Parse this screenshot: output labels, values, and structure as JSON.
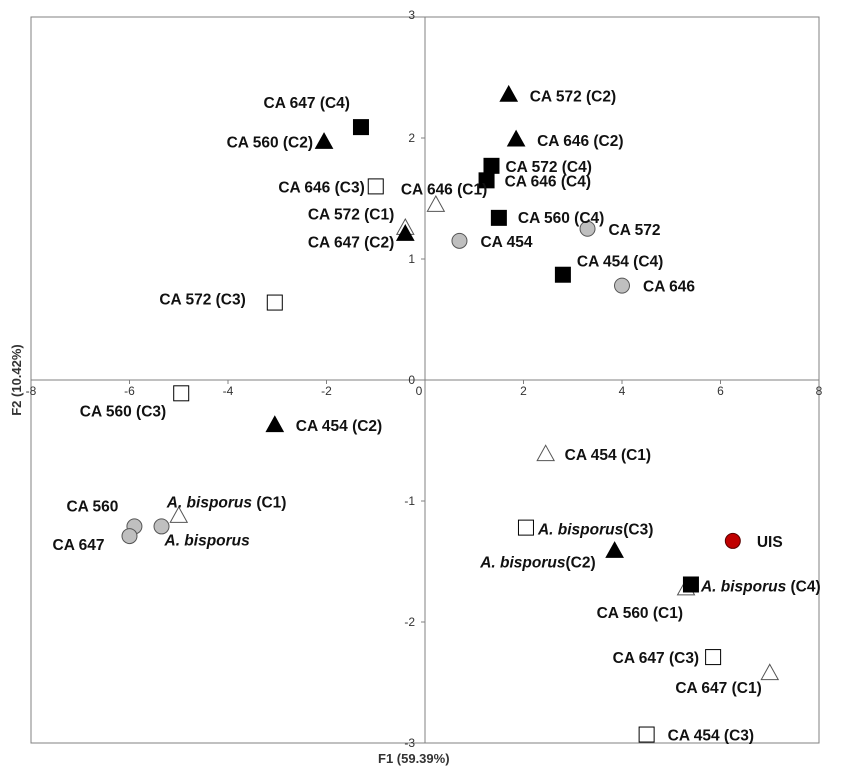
{
  "chart_data": {
    "type": "scatter",
    "title": "",
    "xlabel": "F1 (59.39%)",
    "ylabel": "F2 (10.42%)",
    "xlim": [
      -8,
      8
    ],
    "ylim": [
      -3,
      3
    ],
    "x_ticks": [
      "-8",
      "-6",
      "-4",
      "-2",
      "0",
      "2",
      "4",
      "6",
      "8"
    ],
    "y_ticks": [
      "-3",
      "-2",
      "-1",
      "0",
      "1",
      "2",
      "3"
    ],
    "grid": false,
    "legend": "none",
    "marker_colors": {
      "filled_square": "#000000",
      "open_square": "#ffffff",
      "filled_triangle": "#000000",
      "open_triangle": "#ffffff",
      "grey_circle": "#bfbfbf",
      "red_circle": "#c00000"
    },
    "points": [
      {
        "marker": "filled_square",
        "x": -1.3,
        "y": 2.09,
        "label": "CA 647 (C4)"
      },
      {
        "marker": "filled_triangle",
        "x": -2.05,
        "y": 1.97,
        "label": "CA 560 (C2)"
      },
      {
        "marker": "open_square",
        "x": -1.0,
        "y": 1.6,
        "label": "CA 646 (C3)"
      },
      {
        "marker": "open_triangle",
        "x": -0.4,
        "y": 1.26,
        "label": "CA 572 (C1)"
      },
      {
        "marker": "filled_triangle",
        "x": -0.4,
        "y": 1.21,
        "label": "CA 647 (C2)"
      },
      {
        "marker": "open_triangle",
        "x": 0.22,
        "y": 1.45,
        "label": "CA 646 (C1)"
      },
      {
        "marker": "filled_triangle",
        "x": 1.7,
        "y": 2.36,
        "label": "CA 572 (C2)"
      },
      {
        "marker": "filled_triangle",
        "x": 1.85,
        "y": 1.99,
        "label": "CA 646 (C2)"
      },
      {
        "marker": "filled_square",
        "x": 1.35,
        "y": 1.77,
        "label": "CA 572 (C4)"
      },
      {
        "marker": "filled_square",
        "x": 1.25,
        "y": 1.65,
        "label": "CA 646 (C4)"
      },
      {
        "marker": "filled_square",
        "x": 1.5,
        "y": 1.34,
        "label": "CA 560 (C4)"
      },
      {
        "marker": "grey_circle",
        "x": 0.7,
        "y": 1.15,
        "label": "CA 454"
      },
      {
        "marker": "grey_circle",
        "x": 3.3,
        "y": 1.25,
        "label": "CA 572"
      },
      {
        "marker": "filled_square",
        "x": 2.8,
        "y": 0.87,
        "label": "CA 454 (C4)"
      },
      {
        "marker": "grey_circle",
        "x": 4.0,
        "y": 0.78,
        "label": "CA 646"
      },
      {
        "marker": "open_square",
        "x": -3.05,
        "y": 0.64,
        "label": "CA 572 (C3)"
      },
      {
        "marker": "open_square",
        "x": -4.95,
        "y": -0.11,
        "label": "CA 560 (C3)"
      },
      {
        "marker": "filled_triangle",
        "x": -3.05,
        "y": -0.37,
        "label": "CA 454 (C2)"
      },
      {
        "marker": "open_triangle",
        "x": -5.0,
        "y": -1.12,
        "label": "A. bisporus (C1)"
      },
      {
        "marker": "grey_circle",
        "x": -5.35,
        "y": -1.21,
        "label": "A. bisporus"
      },
      {
        "marker": "grey_circle",
        "x": -5.9,
        "y": -1.21,
        "label": "CA 560"
      },
      {
        "marker": "grey_circle",
        "x": -6.0,
        "y": -1.29,
        "label": "CA 647"
      },
      {
        "marker": "open_triangle",
        "x": 2.45,
        "y": -0.61,
        "label": "CA 454 (C1)"
      },
      {
        "marker": "open_square",
        "x": 2.05,
        "y": -1.22,
        "label": "A. bisporus(C3)"
      },
      {
        "marker": "filled_triangle",
        "x": 3.85,
        "y": -1.41,
        "label": "A. bisporus(C2)"
      },
      {
        "marker": "red_circle",
        "x": 6.25,
        "y": -1.33,
        "label": "UIS"
      },
      {
        "marker": "open_triangle",
        "x": 5.3,
        "y": -1.72,
        "label": "CA 560 (C1)"
      },
      {
        "marker": "filled_square",
        "x": 5.4,
        "y": -1.69,
        "label": "A. bisporus (C4)"
      },
      {
        "marker": "open_square",
        "x": 5.85,
        "y": -2.29,
        "label": "CA 647 (C3)"
      },
      {
        "marker": "open_triangle",
        "x": 7.0,
        "y": -2.42,
        "label": "CA 647 (C1)"
      },
      {
        "marker": "open_square",
        "x": 4.5,
        "y": -2.93,
        "label": "CA 454 (C3)"
      }
    ]
  }
}
